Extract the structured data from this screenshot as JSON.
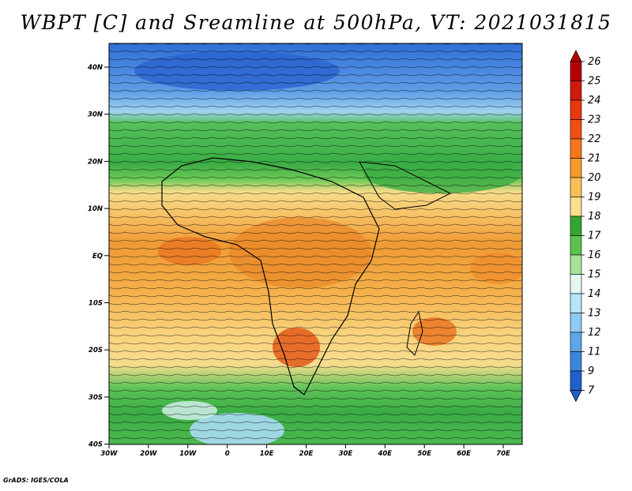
{
  "title": "WBPT [C] and Sreamline at 500hPa, VT: 2021031815",
  "credit": "GrADS: IGES/COLA",
  "map": {
    "lat_ticks": [
      "40N",
      "30N",
      "20N",
      "10N",
      "EQ",
      "10S",
      "20S",
      "30S",
      "40S"
    ],
    "lon_ticks": [
      "30W",
      "20W",
      "10W",
      "0",
      "10E",
      "20E",
      "30E",
      "40E",
      "50E",
      "60E",
      "70E"
    ],
    "colorbar": {
      "labels": [
        "26",
        "25",
        "24",
        "23",
        "22",
        "21",
        "20",
        "19",
        "18",
        "17",
        "16",
        "15",
        "14",
        "13",
        "12",
        "11",
        "9",
        "7"
      ],
      "colors": [
        "#b40000",
        "#d01a0a",
        "#e8360f",
        "#f04f14",
        "#f5761e",
        "#f59a2a",
        "#f9c058",
        "#fbe08c",
        "#33a531",
        "#5cc24d",
        "#a6e19a",
        "#e4f7f5",
        "#b7e4f7",
        "#8ecaf2",
        "#5da6e8",
        "#3a86db",
        "#1f60c9",
        "#1f60c9"
      ]
    },
    "regions": [
      {
        "name": "north-cold",
        "color": "#2f6ed6"
      },
      {
        "name": "north-green",
        "color": "#3db04a"
      },
      {
        "name": "tropical-warm",
        "color": "#f59a2a"
      },
      {
        "name": "south-green",
        "color": "#3db04a"
      }
    ]
  }
}
